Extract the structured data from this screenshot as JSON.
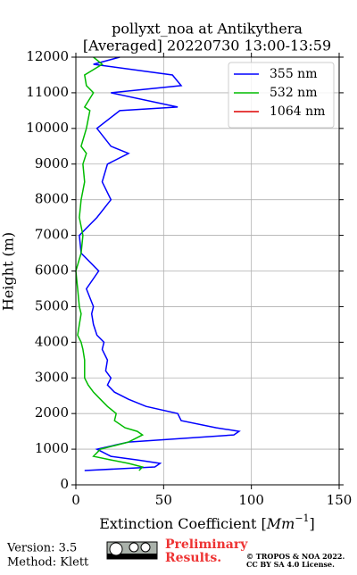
{
  "chart_data": {
    "type": "line",
    "title": [
      "pollyxt_noa at Antikythera",
      "[Averaged] 20220730 13:00-13:59"
    ],
    "xlabel_parts": [
      "Extinction Coefficient [",
      "Mm",
      "−1",
      "]"
    ],
    "ylabel": "Height (m)",
    "xlim": [
      0,
      150
    ],
    "xticks": [
      0,
      50,
      100,
      150
    ],
    "ylim": [
      0,
      12000
    ],
    "yticks": [
      0,
      1000,
      2000,
      3000,
      4000,
      5000,
      6000,
      7000,
      8000,
      9000,
      10000,
      11000,
      12000
    ],
    "grid": true,
    "legend": "upper right",
    "x": [
      400,
      500,
      600,
      700,
      800,
      1000,
      1200,
      1400,
      1500,
      1600,
      1800,
      2000,
      2200,
      2400,
      2600,
      2800,
      3000,
      3200,
      3500,
      3800,
      4000,
      4200,
      4500,
      4800,
      5000,
      5500,
      6000,
      6500,
      7000,
      7500,
      8000,
      8500,
      9000,
      9300,
      9500,
      10000,
      10500,
      10600,
      11000,
      11200,
      11500,
      11800,
      12000
    ],
    "series": [
      {
        "name": "355 nm",
        "color": "#0000ff",
        "values": [
          5,
          45,
          48,
          35,
          20,
          12,
          30,
          90,
          93,
          80,
          60,
          58,
          40,
          30,
          22,
          18,
          20,
          17,
          18,
          15,
          16,
          12,
          10,
          9,
          10,
          6,
          13,
          3,
          2,
          12,
          20,
          15,
          18,
          30,
          20,
          12,
          25,
          58,
          20,
          60,
          55,
          10,
          25
        ]
      },
      {
        "name": "532 nm",
        "color": "#00bb00",
        "values": [
          36,
          38,
          30,
          20,
          10,
          14,
          30,
          38,
          35,
          28,
          22,
          23,
          18,
          14,
          10,
          7,
          5,
          5,
          5,
          4,
          3,
          1,
          2,
          3,
          2,
          1,
          0,
          3,
          4,
          2,
          3,
          5,
          4,
          6,
          3,
          6,
          8,
          5,
          10,
          6,
          5,
          15,
          10
        ]
      },
      {
        "name": "1064 nm",
        "color": "#dd0000",
        "values": [
          null,
          null,
          null,
          null,
          null,
          null,
          null,
          null,
          null,
          null,
          null,
          null,
          null,
          null,
          null,
          null,
          null,
          null,
          null,
          null,
          null,
          null,
          null,
          null,
          null,
          null,
          null,
          null,
          null,
          null,
          null,
          null,
          null,
          null,
          null,
          null,
          null,
          null,
          null,
          null,
          null,
          null,
          null
        ]
      }
    ]
  },
  "footer": {
    "version": "Version: 3.5",
    "method": "Method: Klett",
    "preliminary": [
      "Preliminary",
      "Results."
    ],
    "copyright": [
      "© TROPOS & NOA 2022.",
      "CC BY SA 4.0 License."
    ]
  }
}
